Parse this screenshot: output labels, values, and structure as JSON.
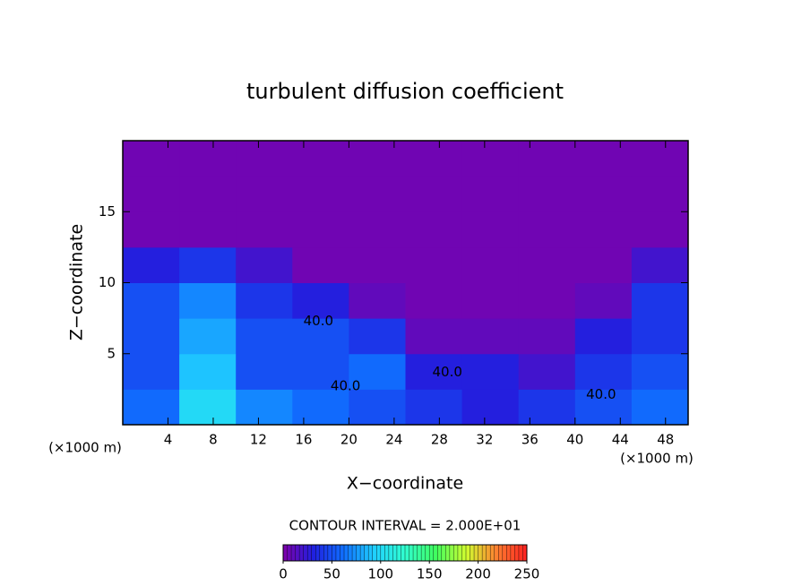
{
  "chart_data": {
    "type": "heatmap",
    "title": "turbulent diffusion coefficient",
    "x_label": "X−coordinate",
    "y_label": "Z−coordinate",
    "x_unit": "(×1000 m)",
    "y_unit": "(×1000 m)",
    "xlim": [
      0,
      50
    ],
    "ylim": [
      0,
      20
    ],
    "xticks": [
      4,
      8,
      12,
      16,
      20,
      24,
      28,
      32,
      36,
      40,
      44,
      48
    ],
    "yticks": [
      5,
      10,
      15
    ],
    "x_edges": [
      0,
      5,
      10,
      15,
      20,
      25,
      30,
      35,
      40,
      45,
      50
    ],
    "y_edges": [
      0,
      2.5,
      5,
      7.5,
      10,
      12.5,
      15,
      17.5,
      20
    ],
    "z": [
      [
        60,
        100,
        70,
        60,
        50,
        40,
        30,
        40,
        50,
        60
      ],
      [
        50,
        90,
        50,
        50,
        60,
        30,
        30,
        20,
        40,
        50
      ],
      [
        50,
        80,
        50,
        50,
        40,
        10,
        10,
        10,
        30,
        40
      ],
      [
        50,
        70,
        40,
        30,
        10,
        5,
        5,
        5,
        10,
        40
      ],
      [
        30,
        40,
        20,
        5,
        5,
        5,
        5,
        5,
        5,
        20
      ],
      [
        5,
        5,
        5,
        5,
        5,
        5,
        5,
        5,
        5,
        5
      ],
      [
        5,
        5,
        5,
        5,
        5,
        5,
        5,
        5,
        5,
        5
      ],
      [
        5,
        5,
        5,
        5,
        5,
        5,
        5,
        5,
        5,
        5
      ]
    ],
    "colormap": [
      "#7f00aa",
      "#2020e0",
      "#1070ff",
      "#20d0ff",
      "#30ffd0",
      "#40ff60",
      "#d0ff30",
      "#ff8030",
      "#ff2020"
    ],
    "contour_labels": [
      {
        "label": "40.0",
        "x": 17.3,
        "y": 7.3
      },
      {
        "label": "40.0",
        "x": 19.7,
        "y": 2.7
      },
      {
        "label": "40.0",
        "x": 28.7,
        "y": 3.7
      },
      {
        "label": "40.0",
        "x": 42.3,
        "y": 2.1
      }
    ],
    "colorbar": {
      "title": "CONTOUR INTERVAL = 2.000E+01",
      "lim": [
        0,
        250
      ],
      "ticks": [
        0,
        50,
        100,
        150,
        200,
        250
      ]
    }
  }
}
